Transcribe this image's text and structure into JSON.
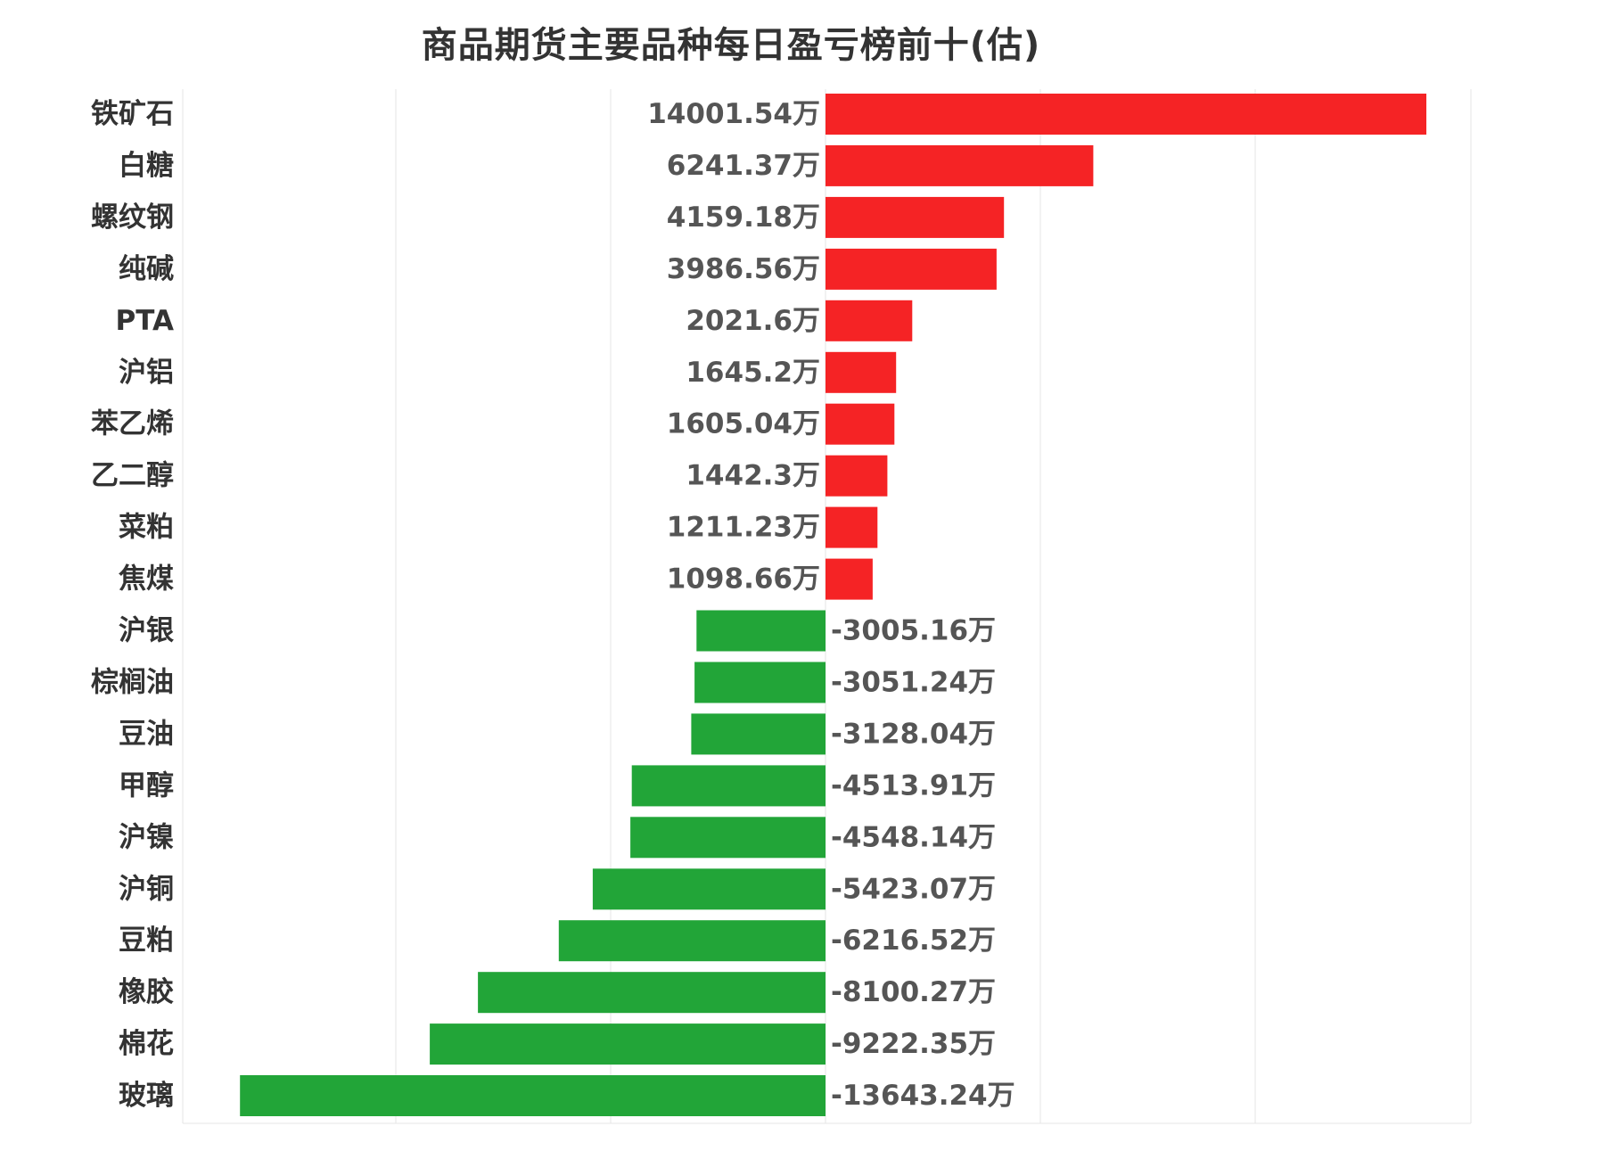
{
  "chart_data": {
    "type": "bar",
    "orientation": "horizontal",
    "title": "商品期货主要品种每日盈亏榜前十(估)",
    "unit": "万",
    "categories": [
      "铁矿石",
      "白糖",
      "螺纹钢",
      "纯碱",
      "PTA",
      "沪铝",
      "苯乙烯",
      "乙二醇",
      "菜粕",
      "焦煤",
      "沪银",
      "棕榈油",
      "豆油",
      "甲醇",
      "沪镍",
      "沪铜",
      "豆粕",
      "橡胶",
      "棉花",
      "玻璃"
    ],
    "values": [
      14001.54,
      6241.37,
      4159.18,
      3986.56,
      2021.6,
      1645.2,
      1605.04,
      1442.3,
      1211.23,
      1098.66,
      -3005.16,
      -3051.24,
      -3128.04,
      -4513.91,
      -4548.14,
      -5423.07,
      -6216.52,
      -8100.27,
      -9222.35,
      -13643.24
    ],
    "value_labels": [
      "14001.54万",
      "6241.37万",
      "4159.18万",
      "3986.56万",
      "2021.6万",
      "1645.2万",
      "1605.04万",
      "1442.3万",
      "1211.23万",
      "1098.66万",
      "-3005.16万",
      "-3051.24万",
      "-3128.04万",
      "-4513.91万",
      "-4548.14万",
      "-5423.07万",
      "-6216.52万",
      "-8100.27万",
      "-9222.35万",
      "-13643.24万"
    ],
    "xlim": [
      -15000,
      15000
    ],
    "grid": true,
    "colors": {
      "positive": "#f52325",
      "negative": "#22a538",
      "grid": "#e6e6e6",
      "title": "#333333",
      "category_text": "#333333",
      "value_text": "#555555"
    }
  }
}
